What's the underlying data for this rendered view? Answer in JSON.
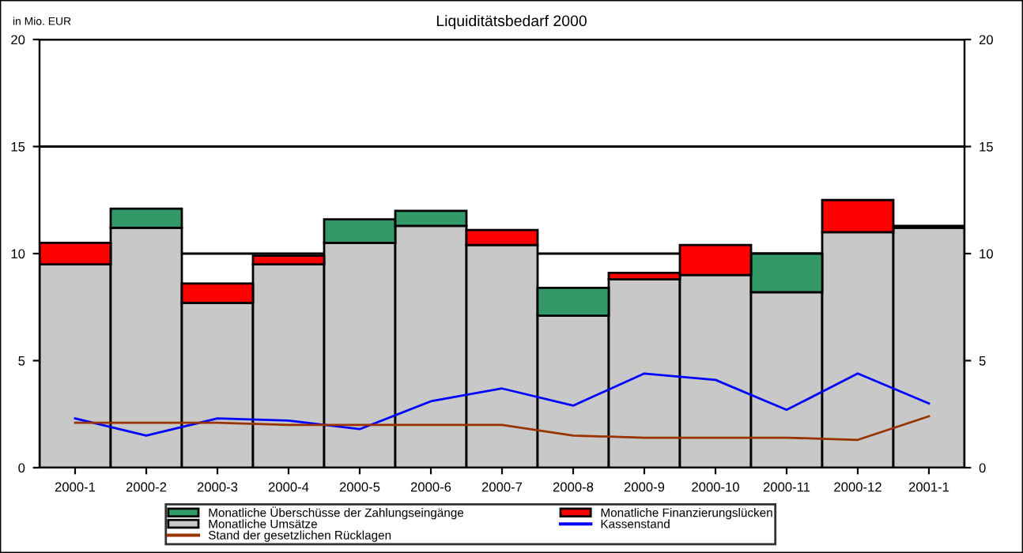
{
  "chart_data": {
    "type": "bar",
    "title": "Liquiditätsbedarf 2000",
    "annotations": [
      "in Mio. EUR"
    ],
    "categories": [
      "2000-1",
      "2000-2",
      "2000-3",
      "2000-4",
      "2000-5",
      "2000-6",
      "2000-7",
      "2000-8",
      "2000-9",
      "2000-10",
      "2000-11",
      "2000-12",
      "2001-1"
    ],
    "stacked": true,
    "series": [
      {
        "name": "Monatliche Umsätze",
        "color": "#c8c8c8",
        "values": [
          9.5,
          11.2,
          7.7,
          9.5,
          10.5,
          11.3,
          10.4,
          7.1,
          8.8,
          9.0,
          8.2,
          11.0,
          11.2
        ]
      },
      {
        "name": "Monatliche Überschüsse der Zahlungseingänge",
        "color": "#339966",
        "values": [
          null,
          0.9,
          null,
          null,
          1.1,
          0.7,
          null,
          1.3,
          null,
          null,
          1.8,
          null,
          0.1
        ]
      },
      {
        "name": "Monatliche Finanzierungslücken",
        "color": "#ff0000",
        "values": [
          1.0,
          null,
          0.9,
          0.4,
          null,
          null,
          0.7,
          null,
          0.3,
          1.4,
          null,
          1.5,
          null
        ]
      },
      {
        "name": "Kassenstand",
        "type": "line",
        "color": "#0000ff",
        "values": [
          2.3,
          1.5,
          2.3,
          2.2,
          1.8,
          3.1,
          3.7,
          2.9,
          4.4,
          4.1,
          2.7,
          4.4,
          3.0
        ]
      },
      {
        "name": "Stand der gesetzlichen Rücklagen",
        "type": "line",
        "color": "#993300",
        "values": [
          2.1,
          2.1,
          2.1,
          2.0,
          2.0,
          2.0,
          2.0,
          1.5,
          1.4,
          1.4,
          1.4,
          1.3,
          2.4
        ]
      }
    ],
    "ylim": [
      0,
      20
    ],
    "yticks": [
      0,
      5,
      10,
      15,
      20
    ],
    "y2lim": [
      0,
      20
    ],
    "y2ticks": [
      0,
      5,
      10,
      15,
      20
    ],
    "grid": "y",
    "legend": "bottom",
    "marker": "none",
    "line_style": "solid"
  }
}
